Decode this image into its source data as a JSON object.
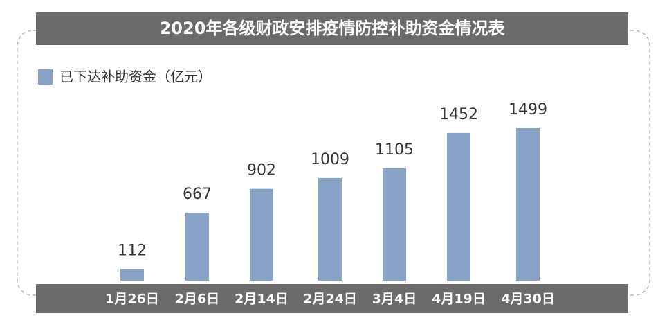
{
  "chart_data": {
    "type": "bar",
    "title": "2020年各级财政安排疫情防控补助资金情况表",
    "categories": [
      "1月26日",
      "2月6日",
      "2月14日",
      "2月24日",
      "3月4日",
      "4月19日",
      "4月30日"
    ],
    "series": [
      {
        "name": "已下达补助资金（亿元）",
        "color": "#87a2c4",
        "values": [
          112,
          667,
          902,
          1009,
          1105,
          1452,
          1499
        ]
      }
    ]
  }
}
